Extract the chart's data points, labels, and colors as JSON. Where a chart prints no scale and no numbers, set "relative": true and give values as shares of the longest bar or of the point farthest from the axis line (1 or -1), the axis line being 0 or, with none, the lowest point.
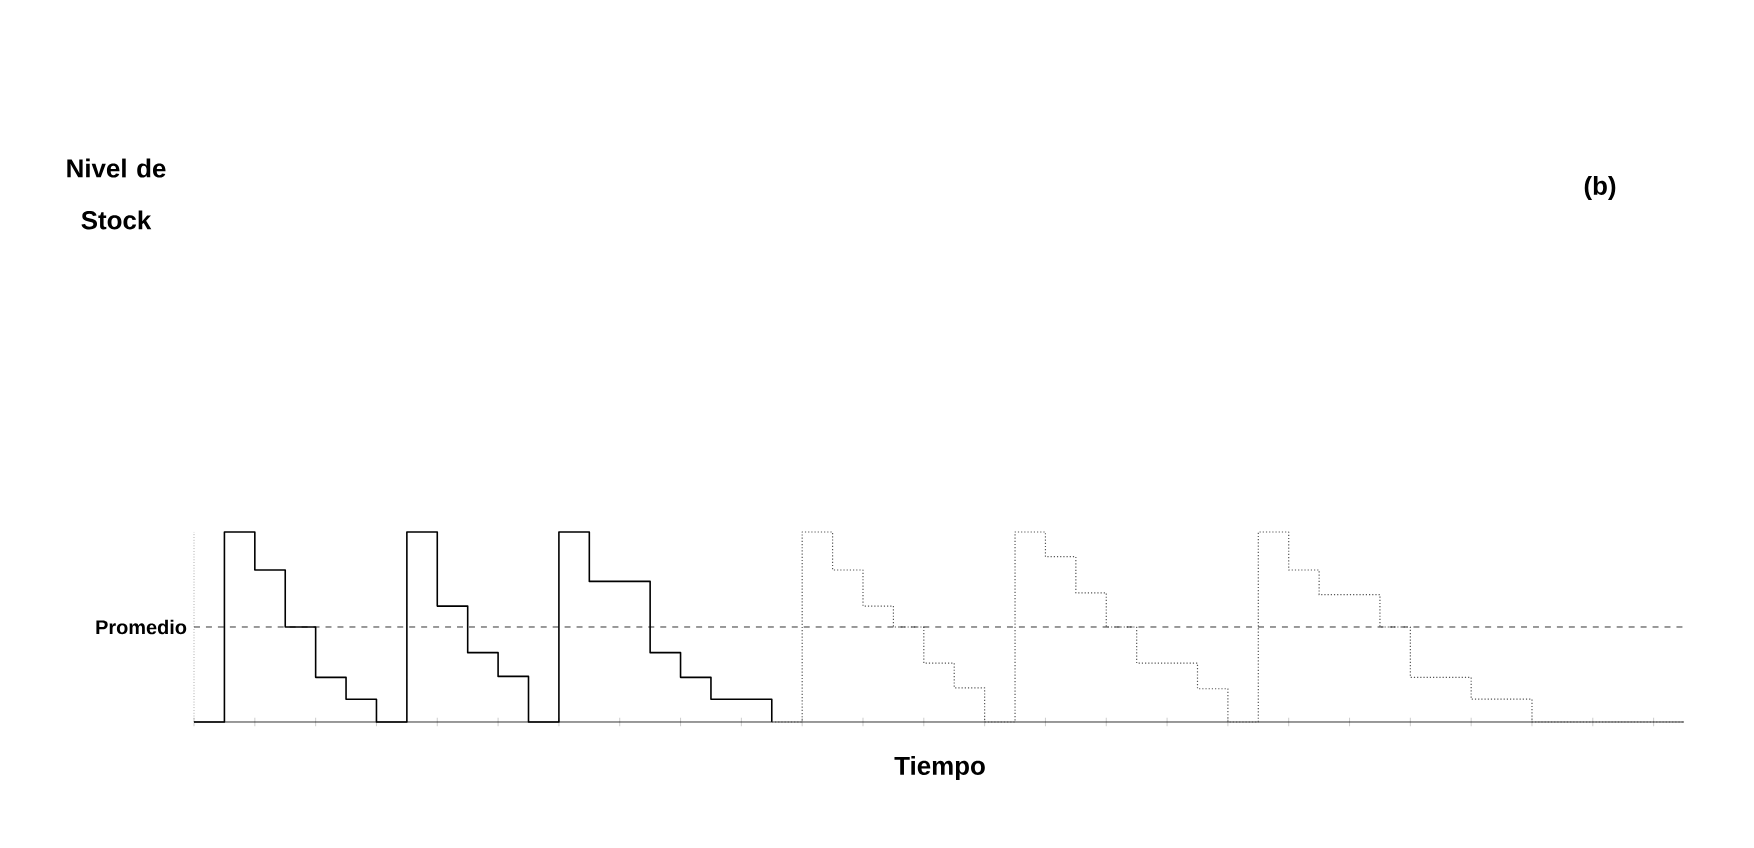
{
  "chart_data": {
    "type": "step",
    "relative": true,
    "xlabel": "Tiempo",
    "ylabel": "Nivel de Stock",
    "annotations": [
      "(b)"
    ],
    "categories": [
      null,
      null,
      null,
      null,
      null,
      null,
      null,
      null,
      null,
      null,
      null,
      null,
      null,
      null,
      null,
      null,
      null,
      null,
      null,
      null,
      null,
      null,
      null,
      null,
      null,
      null,
      null,
      null,
      null,
      null,
      null,
      null,
      null,
      null,
      null,
      null,
      null,
      null,
      null,
      null,
      null,
      null,
      null,
      null,
      null,
      null,
      null,
      null,
      null,
      null
    ],
    "series": [
      {
        "color": "#000000",
        "line_style": "solid",
        "values": [
          0,
          1,
          0.8,
          0.5,
          0.235,
          0.12,
          0,
          1,
          0.61,
          0.365,
          0.24,
          0,
          1,
          0.74,
          0.74,
          0.365,
          0.235,
          0.12,
          0.12,
          0,
          null,
          null,
          null,
          null,
          null,
          null,
          null,
          null,
          null,
          null,
          null,
          null,
          null,
          null,
          null,
          null,
          null,
          null,
          null,
          null,
          null,
          null,
          null,
          null,
          null,
          null,
          null,
          null,
          null,
          null
        ]
      },
      {
        "color": "#555555",
        "line_style": "dotted",
        "values": [
          null,
          null,
          null,
          null,
          null,
          null,
          null,
          null,
          null,
          null,
          null,
          null,
          null,
          null,
          null,
          null,
          null,
          null,
          null,
          0,
          1,
          0.8,
          0.61,
          0.5,
          0.31,
          0.18,
          0,
          1,
          0.87,
          0.68,
          0.5,
          0.31,
          0.31,
          0.175,
          0,
          1,
          0.8,
          0.67,
          0.67,
          0.5,
          0.235,
          0.235,
          0.12,
          0.12,
          0,
          0,
          0,
          0,
          0,
          0
        ]
      }
    ],
    "ref_lines": [
      {
        "axis": "y",
        "value": 0.5,
        "label": "Promedio",
        "line_style": "dashed"
      }
    ]
  }
}
